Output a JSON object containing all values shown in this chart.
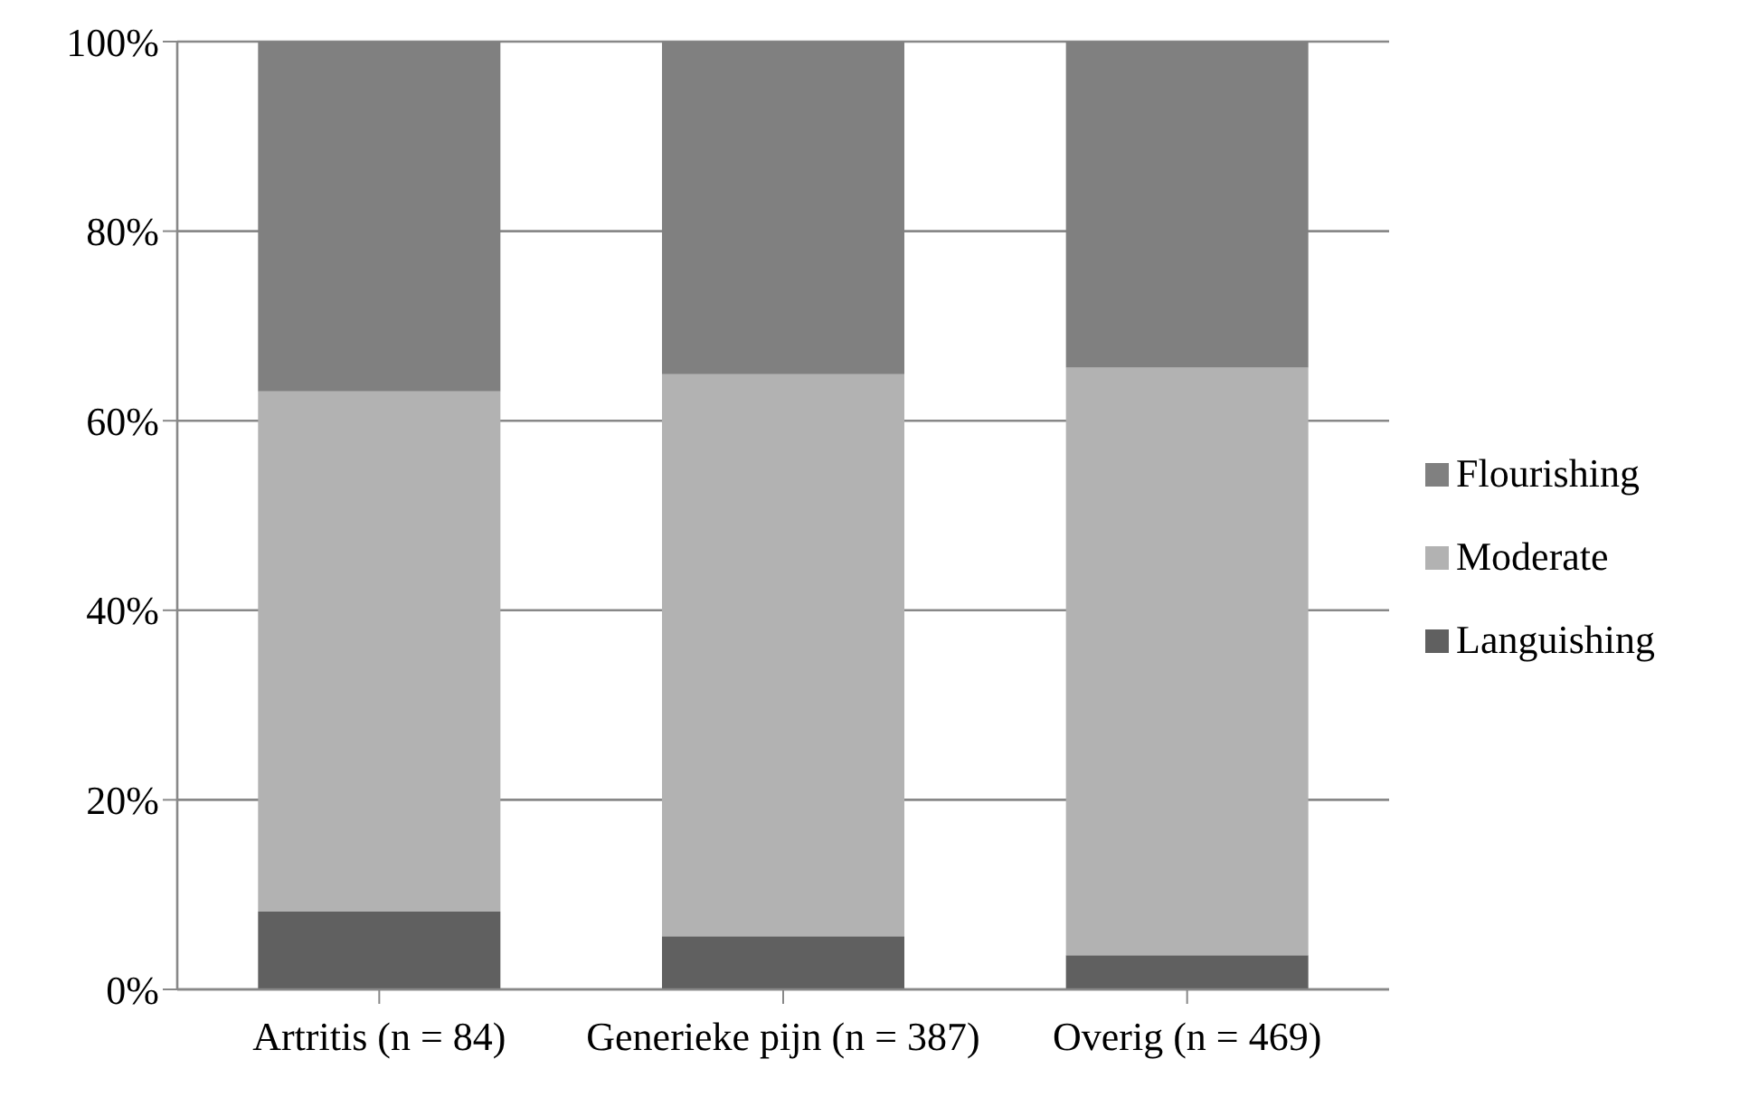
{
  "chart_data": {
    "type": "bar",
    "stacked": true,
    "categories": [
      "Artritis (n = 84)",
      "Generieke pijn (n = 387)",
      "Overig (n = 469)"
    ],
    "series": [
      {
        "name": "Languishing",
        "color": "#606060",
        "values": [
          8.2,
          5.6,
          3.6
        ]
      },
      {
        "name": "Moderate",
        "color": "#b2b2b2",
        "values": [
          54.9,
          59.3,
          62.0
        ]
      },
      {
        "name": "Flourishing",
        "color": "#808080",
        "values": [
          36.9,
          35.1,
          34.4
        ]
      }
    ],
    "ylim": [
      0,
      100
    ],
    "yticks": [
      {
        "value": 0,
        "label": "0%"
      },
      {
        "value": 20,
        "label": "20%"
      },
      {
        "value": 40,
        "label": "40%"
      },
      {
        "value": 60,
        "label": "60%"
      },
      {
        "value": 80,
        "label": "80%"
      },
      {
        "value": 100,
        "label": "100%"
      }
    ],
    "grid": "y",
    "legend": "right"
  }
}
